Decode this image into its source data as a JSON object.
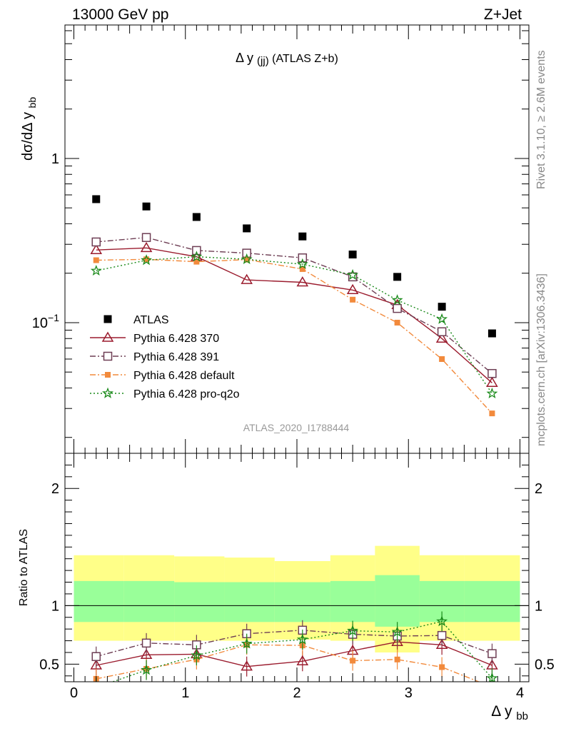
{
  "header": {
    "left": "13000 GeV pp",
    "right": "Z+Jet"
  },
  "side_labels": {
    "rivet": "Rivet 3.1.10, ≥ 2.6M events",
    "mcplots": "mcplots.cern.ch [arXiv:1306.3436]"
  },
  "analysis_id": "ATLAS_2020_I1788444",
  "chart_data": [
    {
      "type": "scatter",
      "panel": "main",
      "title": "Δ y(jj) (ATLAS Z+b)",
      "ylabel": "dσ/dΔ y_bb",
      "yscale": "log",
      "ylim": [
        0.016,
        6.5
      ],
      "xlim": [
        -0.08,
        4.08
      ],
      "y_ticks": [
        {
          "value": 1,
          "label": "1"
        },
        {
          "value": 0.1,
          "label": "10^-1"
        }
      ],
      "legend_position": "lower-left",
      "x": [
        0.2,
        0.65,
        1.1,
        1.55,
        2.05,
        2.5,
        2.9,
        3.3,
        3.75
      ],
      "series": [
        {
          "name": "ATLAS",
          "color": "#000000",
          "marker": "filled-square",
          "line": "none",
          "values": [
            0.565,
            0.51,
            0.44,
            0.375,
            0.335,
            0.26,
            0.19,
            0.125,
            0.086
          ]
        },
        {
          "name": "Pythia 6.428 370",
          "color": "#9b1c2e",
          "marker": "open-triangle",
          "line": "solid",
          "values": [
            0.277,
            0.285,
            0.252,
            0.182,
            0.176,
            0.158,
            0.128,
            0.08,
            0.043
          ]
        },
        {
          "name": "Pythia 6.428 391",
          "color": "#6e3e54",
          "marker": "open-square",
          "line": "dash-dot",
          "values": [
            0.31,
            0.33,
            0.275,
            0.265,
            0.248,
            0.19,
            0.122,
            0.088,
            0.049
          ]
        },
        {
          "name": "Pythia 6.428 default",
          "color": "#f28a3c",
          "marker": "filled-square-small",
          "line": "dash-dot",
          "values": [
            0.24,
            0.243,
            0.235,
            0.242,
            0.212,
            0.138,
            0.1,
            0.06,
            0.028
          ]
        },
        {
          "name": "Pythia 6.428 pro-q2o",
          "color": "#1a8a1a",
          "marker": "star",
          "line": "dotted",
          "values": [
            0.207,
            0.24,
            0.252,
            0.243,
            0.227,
            0.195,
            0.137,
            0.105,
            0.037
          ]
        }
      ]
    },
    {
      "type": "line",
      "panel": "ratio",
      "ylabel": "Ratio to ATLAS",
      "xlabel": "Δ y_bb",
      "ylim": [
        0.35,
        2.3
      ],
      "xlim": [
        -0.08,
        4.08
      ],
      "x_ticks": [
        0,
        1,
        2,
        3,
        4
      ],
      "y_ticks": [
        0.5,
        1,
        2
      ],
      "reference_line": 1,
      "bands": {
        "bin_edges": [
          0,
          0.45,
          0.9,
          1.35,
          1.8,
          2.3,
          2.7,
          3.1,
          3.5,
          4.0
        ],
        "outer": {
          "color": "#ffff88",
          "low": [
            0.7,
            0.7,
            0.7,
            0.7,
            0.71,
            0.7,
            0.6,
            0.7,
            0.7
          ],
          "high": [
            1.43,
            1.43,
            1.42,
            1.41,
            1.38,
            1.43,
            1.51,
            1.43,
            1.43
          ]
        },
        "inner": {
          "color": "#99ff99",
          "low": [
            0.86,
            0.86,
            0.86,
            0.86,
            0.86,
            0.86,
            0.82,
            0.86,
            0.86
          ],
          "high": [
            1.21,
            1.21,
            1.2,
            1.2,
            1.2,
            1.21,
            1.26,
            1.21,
            1.21
          ]
        }
      },
      "x": [
        0.2,
        0.65,
        1.1,
        1.55,
        2.05,
        2.5,
        2.9,
        3.3,
        3.75
      ],
      "series": [
        {
          "name": "Pythia 6.428 370",
          "values": [
            0.49,
            0.58,
            0.585,
            0.48,
            0.525,
            0.615,
            0.69,
            0.665,
            0.49
          ]
        },
        {
          "name": "Pythia 6.428 391",
          "values": [
            0.565,
            0.68,
            0.665,
            0.76,
            0.79,
            0.755,
            0.74,
            0.745,
            0.59
          ]
        },
        {
          "name": "Pythia 6.428 default",
          "values": [
            0.375,
            0.46,
            0.54,
            0.665,
            0.66,
            0.53,
            0.54,
            0.475,
            0.305
          ]
        },
        {
          "name": "Pythia 6.428 pro-q2o",
          "values": [
            0.3,
            0.45,
            0.575,
            0.675,
            0.71,
            0.785,
            0.775,
            0.865,
            0.38
          ]
        }
      ]
    }
  ]
}
